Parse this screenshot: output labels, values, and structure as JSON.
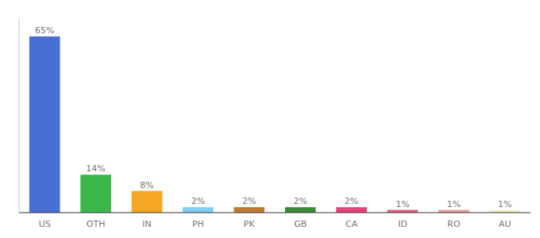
{
  "chart_data": {
    "type": "bar",
    "categories": [
      "US",
      "OTH",
      "IN",
      "PH",
      "PK",
      "GB",
      "CA",
      "ID",
      "RO",
      "AU"
    ],
    "values": [
      65,
      14,
      8,
      2,
      2,
      2,
      2,
      1,
      1,
      1
    ],
    "value_labels": [
      "65%",
      "14%",
      "8%",
      "2%",
      "2%",
      "2%",
      "2%",
      "1%",
      "1%",
      "1%"
    ],
    "colors": [
      "#4a6fd4",
      "#3cb84a",
      "#f5a623",
      "#7ecef5",
      "#c07830",
      "#3a8a3a",
      "#e8407a",
      "#e06080",
      "#e8a0a0",
      "#f5f0c8"
    ],
    "ylim": [
      0,
      72
    ],
    "data_labels": true,
    "tick_labels": "x",
    "grid": false
  }
}
